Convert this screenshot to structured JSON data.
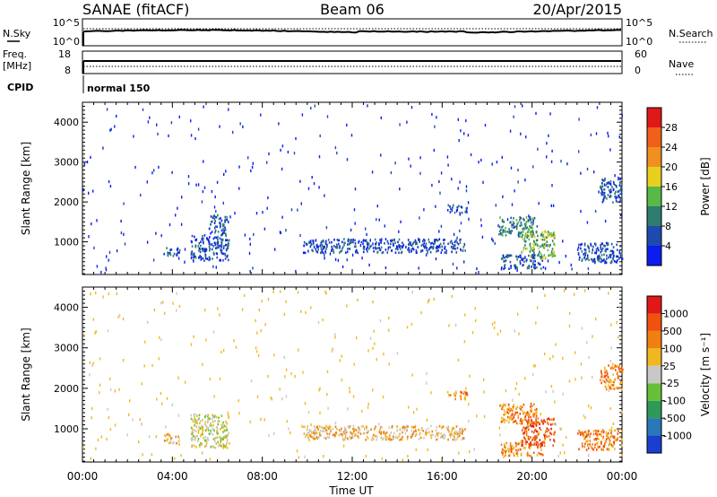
{
  "header": {
    "station": "SANAE (fitACF)",
    "beam": "Beam 06",
    "date": "20/Apr/2015"
  },
  "noise_panel": {
    "left_label": "N.Sky",
    "left_ticks": [
      "10^5",
      "10^0"
    ],
    "right_label": "N.Search",
    "right_ticks": [
      "10^5",
      "10^0"
    ]
  },
  "freq_panel": {
    "left_label_1": "Freq.",
    "left_label_2": "[MHz]",
    "left_ticks": [
      "18",
      "8"
    ],
    "right_label": "Nave",
    "right_ticks": [
      "60",
      "0"
    ]
  },
  "cpid": {
    "label": "CPID",
    "value": "normal 150"
  },
  "x_axis": {
    "title": "Time UT",
    "ticks": [
      "00:00",
      "04:00",
      "08:00",
      "12:00",
      "16:00",
      "20:00",
      "00:00"
    ]
  },
  "chart_data": [
    {
      "type": "heatmap",
      "name": "power",
      "ylabel": "Slant Range [km]",
      "y_ticks": [
        "1000",
        "2000",
        "3000",
        "4000"
      ],
      "ylim": [
        180,
        4500
      ],
      "xlim_hours": [
        0,
        24
      ],
      "colorbar": {
        "title": "Power [dB]",
        "ticks": [
          "4",
          "8",
          "12",
          "16",
          "20",
          "24",
          "28"
        ],
        "colors": [
          "#0a1cf0",
          "#1e4ab0",
          "#2e7d6e",
          "#58b848",
          "#e8d020",
          "#f09020",
          "#f06018",
          "#e01818"
        ]
      },
      "regions": [
        {
          "t0": 3.6,
          "t1": 4.3,
          "r0": 650,
          "r1": 900,
          "level": 1
        },
        {
          "t0": 4.8,
          "t1": 6.5,
          "r0": 550,
          "r1": 1200,
          "level": 1
        },
        {
          "t0": 5.6,
          "t1": 6.4,
          "r0": 1200,
          "r1": 1700,
          "level": 1
        },
        {
          "t0": 9.8,
          "t1": 17.0,
          "r0": 750,
          "r1": 1100,
          "level": 1
        },
        {
          "t0": 16.2,
          "t1": 17.1,
          "r0": 1750,
          "r1": 1950,
          "level": 1
        },
        {
          "t0": 18.5,
          "t1": 20.2,
          "r0": 1150,
          "r1": 1650,
          "level": 2
        },
        {
          "t0": 18.6,
          "t1": 20.5,
          "r0": 350,
          "r1": 700,
          "level": 1
        },
        {
          "t0": 19.5,
          "t1": 21.0,
          "r0": 600,
          "r1": 1300,
          "level": 3
        },
        {
          "t0": 22.0,
          "t1": 24.0,
          "r0": 500,
          "r1": 1000,
          "level": 1
        },
        {
          "t0": 23.0,
          "t1": 24.0,
          "r0": 2000,
          "r1": 2600,
          "level": 1
        }
      ]
    },
    {
      "type": "heatmap",
      "name": "velocity",
      "ylabel": "Slant Range [km]",
      "y_ticks": [
        "1000",
        "2000",
        "3000",
        "4000"
      ],
      "ylim": [
        180,
        4500
      ],
      "xlim_hours": [
        0,
        24
      ],
      "colorbar": {
        "title": "Velocity [m s⁻¹]",
        "ticks": [
          "1000",
          "500",
          "100",
          "25",
          "-25",
          "-100",
          "-500",
          "-1000"
        ],
        "colors": [
          "#1a3ed0",
          "#2a78b8",
          "#2e9a5a",
          "#68c038",
          "#c8c8c8",
          "#f0b820",
          "#f08010",
          "#f05010",
          "#e01818"
        ]
      },
      "regions": [
        {
          "t0": 3.6,
          "t1": 4.3,
          "r0": 650,
          "r1": 900,
          "level": 5
        },
        {
          "t0": 4.8,
          "t1": 6.5,
          "r0": 550,
          "r1": 1400,
          "level": 4
        },
        {
          "t0": 9.8,
          "t1": 17.0,
          "r0": 750,
          "r1": 1100,
          "level": 5
        },
        {
          "t0": 16.2,
          "t1": 17.1,
          "r0": 1750,
          "r1": 1950,
          "level": 6
        },
        {
          "t0": 18.5,
          "t1": 20.2,
          "r0": 1150,
          "r1": 1650,
          "level": 6
        },
        {
          "t0": 18.6,
          "t1": 20.5,
          "r0": 350,
          "r1": 700,
          "level": 6
        },
        {
          "t0": 19.5,
          "t1": 21.0,
          "r0": 600,
          "r1": 1300,
          "level": 7
        },
        {
          "t0": 22.0,
          "t1": 24.0,
          "r0": 500,
          "r1": 1000,
          "level": 6
        },
        {
          "t0": 23.0,
          "t1": 24.0,
          "r0": 2000,
          "r1": 2600,
          "level": 6
        }
      ]
    }
  ]
}
